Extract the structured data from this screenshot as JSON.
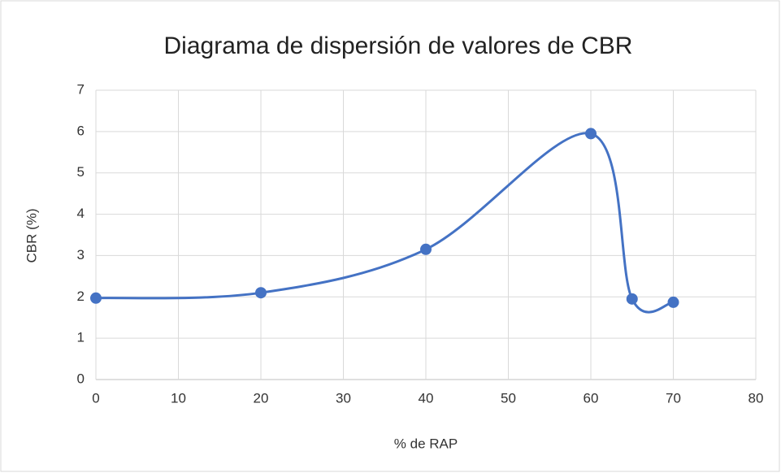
{
  "chart_data": {
    "type": "scatter",
    "title": "Diagrama de dispersión de valores de CBR",
    "xlabel": "% de RAP",
    "ylabel": "CBR (%)",
    "series": [
      {
        "color": "#4472c4",
        "x": [
          0,
          20,
          40,
          60,
          65,
          70
        ],
        "values": [
          1.97,
          2.1,
          3.15,
          5.95,
          1.95,
          1.87
        ]
      }
    ],
    "xlim": [
      0,
      80
    ],
    "xticks": [
      0,
      10,
      20,
      30,
      40,
      50,
      60,
      70,
      80
    ],
    "ylim": [
      0,
      7
    ],
    "yticks": [
      0,
      1,
      2,
      3,
      4,
      5,
      6,
      7
    ],
    "grid": true,
    "smooth": true
  }
}
